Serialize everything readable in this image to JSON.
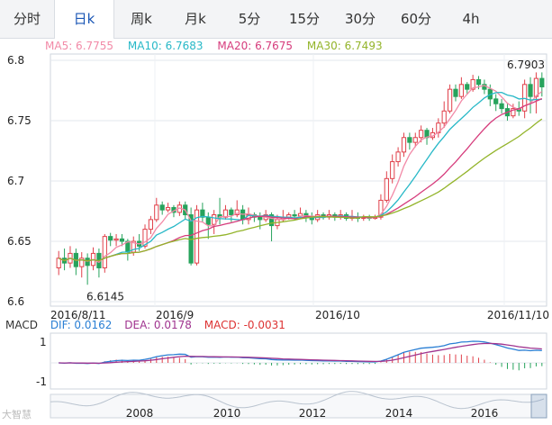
{
  "tabs": [
    "分时",
    "日k",
    "周k",
    "月k",
    "5分",
    "15分",
    "30分",
    "60分",
    "4h"
  ],
  "active_tab": 1,
  "ma": [
    {
      "label": "MA5: 6.7755",
      "color": "#f28aa7"
    },
    {
      "label": "MA10: 6.7683",
      "color": "#27b8c7"
    },
    {
      "label": "MA20: 6.7675",
      "color": "#d63c7c"
    },
    {
      "label": "MA30: 6.7493",
      "color": "#93b42a"
    }
  ],
  "macd_legend": {
    "name": "MACD",
    "dif": "DIF: 0.0162",
    "dea": "DEA: 0.0178",
    "macd": "MACD: -0.0031"
  },
  "watermark": "大智慧",
  "colors": {
    "up": "#e0404a",
    "down": "#27a35c",
    "dif": "#2a7fd4",
    "dea": "#a0348f"
  },
  "chart_data": {
    "type": "candlestick",
    "y_ticks": [
      "6.8",
      "6.75",
      "6.7",
      "6.65",
      "6.6"
    ],
    "ylim": [
      6.6,
      6.8
    ],
    "x_labels": [
      "2016/8/11",
      "2016/9",
      "2016/10",
      "2016/11/10"
    ],
    "annotations": [
      {
        "text": "6.7903",
        "value": 6.7903
      },
      {
        "text": "6.6145",
        "value": 6.6145
      }
    ],
    "candles": [
      [
        6.628,
        6.636,
        6.642,
        6.622
      ],
      [
        6.636,
        6.632,
        6.644,
        6.626
      ],
      [
        6.632,
        6.64,
        6.646,
        6.628
      ],
      [
        6.64,
        6.629,
        6.644,
        6.622
      ],
      [
        6.629,
        6.636,
        6.641,
        6.62
      ],
      [
        6.636,
        6.63,
        6.64,
        6.614
      ],
      [
        6.63,
        6.64,
        6.645,
        6.626
      ],
      [
        6.64,
        6.628,
        6.644,
        6.62
      ],
      [
        6.628,
        6.654,
        6.656,
        6.624
      ],
      [
        6.654,
        6.651,
        6.657,
        6.646
      ],
      [
        6.651,
        6.652,
        6.656,
        6.646
      ],
      [
        6.652,
        6.65,
        6.656,
        6.646
      ],
      [
        6.65,
        6.641,
        6.652,
        6.634
      ],
      [
        6.641,
        6.65,
        6.654,
        6.638
      ],
      [
        6.65,
        6.646,
        6.656,
        6.642
      ],
      [
        6.646,
        6.66,
        6.664,
        6.644
      ],
      [
        6.66,
        6.668,
        6.671,
        6.656
      ],
      [
        6.668,
        6.68,
        6.686,
        6.666
      ],
      [
        6.68,
        6.676,
        6.683,
        6.672
      ],
      [
        6.676,
        6.678,
        6.682,
        6.674
      ],
      [
        6.678,
        6.674,
        6.68,
        6.67
      ],
      [
        6.674,
        6.68,
        6.683,
        6.671
      ],
      [
        6.68,
        6.672,
        6.683,
        6.668
      ],
      [
        6.672,
        6.632,
        6.678,
        6.63
      ],
      [
        6.632,
        6.676,
        6.68,
        6.63
      ],
      [
        6.676,
        6.67,
        6.682,
        6.666
      ],
      [
        6.67,
        6.664,
        6.674,
        6.652
      ],
      [
        6.664,
        6.672,
        6.676,
        6.656
      ],
      [
        6.672,
        6.67,
        6.686,
        6.664
      ],
      [
        6.67,
        6.676,
        6.68,
        6.668
      ],
      [
        6.676,
        6.672,
        6.678,
        6.666
      ],
      [
        6.672,
        6.676,
        6.684,
        6.67
      ],
      [
        6.676,
        6.668,
        6.68,
        6.664
      ],
      [
        6.668,
        6.672,
        6.678,
        6.664
      ],
      [
        6.672,
        6.67,
        6.674,
        6.666
      ],
      [
        6.67,
        6.668,
        6.674,
        6.66
      ],
      [
        6.668,
        6.672,
        6.676,
        6.666
      ],
      [
        6.672,
        6.663,
        6.674,
        6.65
      ],
      [
        6.663,
        6.668,
        6.672,
        6.66
      ],
      [
        6.668,
        6.67,
        6.676,
        6.666
      ],
      [
        6.67,
        6.672,
        6.674,
        6.668
      ],
      [
        6.672,
        6.671,
        6.676,
        6.668
      ],
      [
        6.671,
        6.673,
        6.678,
        6.669
      ],
      [
        6.673,
        6.67,
        6.676,
        6.666
      ],
      [
        6.67,
        6.668,
        6.674,
        6.664
      ],
      [
        6.668,
        6.672,
        6.676,
        6.666
      ],
      [
        6.672,
        6.67,
        6.674,
        6.668
      ],
      [
        6.67,
        6.672,
        6.676,
        6.668
      ],
      [
        6.672,
        6.67,
        6.674,
        6.667
      ],
      [
        6.67,
        6.672,
        6.676,
        6.668
      ],
      [
        6.672,
        6.669,
        6.674,
        6.667
      ],
      [
        6.669,
        6.67,
        6.676,
        6.667
      ],
      [
        6.67,
        6.669,
        6.674,
        6.666
      ],
      [
        6.669,
        6.67,
        6.672,
        6.667
      ],
      [
        6.67,
        6.669,
        6.672,
        6.667
      ],
      [
        6.669,
        6.67,
        6.672,
        6.668
      ],
      [
        6.67,
        6.684,
        6.689,
        6.668
      ],
      [
        6.684,
        6.702,
        6.708,
        6.682
      ],
      [
        6.702,
        6.716,
        6.722,
        6.698
      ],
      [
        6.716,
        6.724,
        6.728,
        6.712
      ],
      [
        6.724,
        6.736,
        6.74,
        6.72
      ],
      [
        6.736,
        6.732,
        6.74,
        6.726
      ],
      [
        6.732,
        6.736,
        6.74,
        6.728
      ],
      [
        6.736,
        6.742,
        6.746,
        6.732
      ],
      [
        6.742,
        6.736,
        6.744,
        6.73
      ],
      [
        6.736,
        6.74,
        6.744,
        6.734
      ],
      [
        6.74,
        6.748,
        6.752,
        6.736
      ],
      [
        6.748,
        6.758,
        6.766,
        6.744
      ],
      [
        6.758,
        6.776,
        6.78,
        6.756
      ],
      [
        6.776,
        6.77,
        6.78,
        6.766
      ],
      [
        6.77,
        6.78,
        6.786,
        6.768
      ],
      [
        6.78,
        6.776,
        6.782,
        6.772
      ],
      [
        6.776,
        6.784,
        6.788,
        6.774
      ],
      [
        6.784,
        6.78,
        6.787,
        6.776
      ],
      [
        6.78,
        6.776,
        6.784,
        6.772
      ],
      [
        6.776,
        6.768,
        6.78,
        6.762
      ],
      [
        6.768,
        6.764,
        6.772,
        6.758
      ],
      [
        6.764,
        6.76,
        6.768,
        6.756
      ],
      [
        6.76,
        6.754,
        6.764,
        6.75
      ],
      [
        6.754,
        6.76,
        6.764,
        6.752
      ],
      [
        6.76,
        6.758,
        6.766,
        6.754
      ],
      [
        6.758,
        6.78,
        6.784,
        6.752
      ],
      [
        6.78,
        6.77,
        6.786,
        6.756
      ],
      [
        6.77,
        6.785,
        6.79,
        6.756
      ],
      [
        6.785,
        6.778,
        6.79,
        6.77
      ]
    ]
  }
}
